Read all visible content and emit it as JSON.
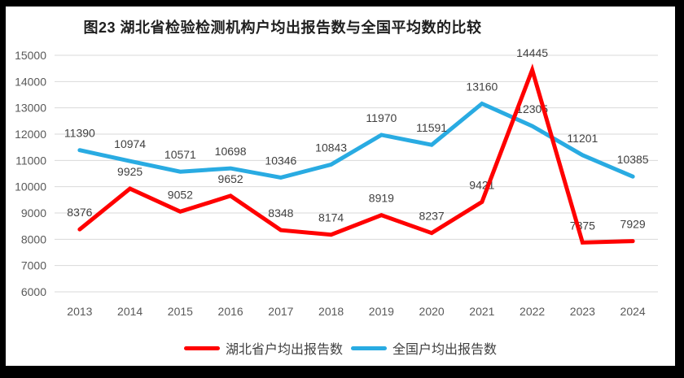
{
  "colors": {
    "frame": "#000000",
    "canvas": "#ffffff",
    "gridline": "#d9d9d9",
    "axis_text": "#595959",
    "data_label_text": "#404040",
    "title_text": "#1f1f1f"
  },
  "chart_data": {
    "type": "line",
    "title": "图23 湖北省检验检测机构户均出报告数与全国平均数的比较",
    "categories": [
      "2013",
      "2014",
      "2015",
      "2016",
      "2017",
      "2018",
      "2019",
      "2020",
      "2021",
      "2022",
      "2023",
      "2024"
    ],
    "series": [
      {
        "id": "hubei",
        "name": "湖北省户均出报告数",
        "color": "#ff0000",
        "values": [
          8376,
          9925,
          9052,
          9652,
          8348,
          8174,
          8919,
          8237,
          9421,
          14445,
          7875,
          7929
        ]
      },
      {
        "id": "national",
        "name": "全国户均出报告数",
        "color": "#29abe2",
        "values": [
          11390,
          10974,
          10571,
          10698,
          10346,
          10843,
          11970,
          11591,
          13160,
          12305,
          11201,
          10385
        ]
      }
    ],
    "ylim": [
      6000,
      15000
    ],
    "yticks": [
      6000,
      7000,
      8000,
      9000,
      10000,
      11000,
      12000,
      13000,
      14000,
      15000
    ],
    "grid": true,
    "data_labels": true,
    "legend_position": "bottom"
  }
}
